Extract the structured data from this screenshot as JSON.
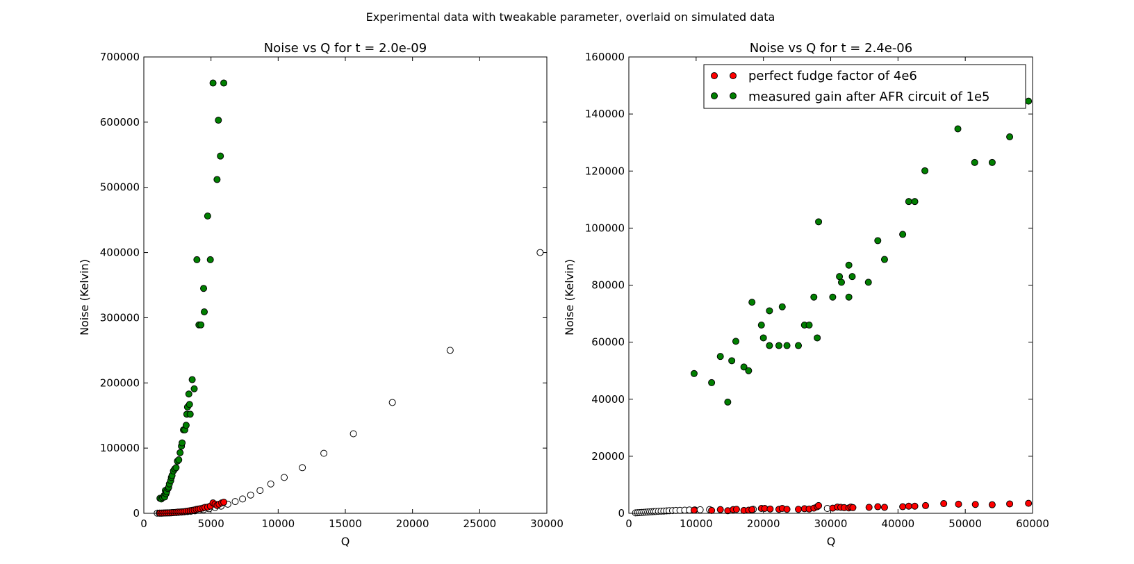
{
  "figure_title": "Experimental data with tweakable parameter, overlaid on simulated data",
  "colors": {
    "red": "#ff0000",
    "green": "#007f00",
    "hollow": "#ffffff",
    "edge": "#000000"
  },
  "chart_data": [
    {
      "type": "scatter",
      "title": "Noise vs Q for t = 2.0e-09",
      "xlabel": "Q",
      "ylabel": "Noise (Kelvin)",
      "xlim": [
        0,
        30000
      ],
      "ylim": [
        0,
        700000
      ],
      "xticks": [
        0,
        5000,
        10000,
        15000,
        20000,
        25000,
        30000
      ],
      "yticks": [
        0,
        100000,
        200000,
        300000,
        400000,
        500000,
        600000,
        700000
      ],
      "legend": null,
      "series": [
        {
          "marker": "hollow",
          "x": [
            1000,
            1150,
            1300,
            1450,
            1600,
            1750,
            1900,
            2050,
            2200,
            2400,
            2600,
            2800,
            3000,
            3250,
            3500,
            3800,
            4100,
            4450,
            4850,
            5300,
            5750,
            6250,
            6800,
            7350,
            7950,
            8650,
            9450,
            10450,
            11800,
            13400,
            15600,
            18500,
            22800,
            29500
          ],
          "y": [
            200,
            250,
            300,
            400,
            500,
            600,
            700,
            800,
            1000,
            1200,
            1500,
            1800,
            2100,
            2600,
            3100,
            3800,
            4600,
            5600,
            7000,
            9000,
            11000,
            14000,
            18000,
            22000,
            28000,
            35000,
            45000,
            55000,
            70000,
            92000,
            122000,
            170000,
            250000,
            400000
          ]
        },
        {
          "marker": "red",
          "x": [
            1200,
            1350,
            1500,
            1650,
            1800,
            1950,
            2100,
            2250,
            2400,
            2550,
            2700,
            2850,
            3000,
            3150,
            3300,
            3450,
            3600,
            3750,
            3900,
            4050,
            4200,
            4400,
            4550,
            4750,
            4950,
            5150,
            5300,
            5450,
            5600,
            5800,
            5950
          ],
          "y": [
            200,
            300,
            400,
            500,
            700,
            800,
            1000,
            1200,
            1500,
            1800,
            2000,
            2300,
            2500,
            3000,
            3500,
            4000,
            4500,
            5000,
            6000,
            6500,
            7000,
            8000,
            9000,
            9500,
            11000,
            16000,
            14000,
            12000,
            14000,
            16000,
            17000
          ]
        },
        {
          "marker": "green",
          "x": [
            1200,
            1300,
            1400,
            1500,
            1550,
            1600,
            1650,
            1700,
            1800,
            1850,
            1900,
            2000,
            2050,
            2100,
            2200,
            2300,
            2400,
            2500,
            2600,
            2700,
            2800,
            2850,
            2950,
            3050,
            3150,
            3200,
            3250,
            3350,
            3400,
            3450,
            3600,
            3750,
            3950,
            4100,
            4250,
            4450,
            4500,
            4750,
            4950,
            5150,
            5450,
            5550,
            5700,
            5950
          ],
          "y": [
            23000,
            22000,
            24000,
            27000,
            25000,
            35000,
            30000,
            33000,
            38000,
            40000,
            45000,
            50000,
            55000,
            58000,
            65000,
            68000,
            70000,
            80000,
            82000,
            93000,
            103000,
            108000,
            128000,
            128000,
            135000,
            152000,
            163000,
            183000,
            167000,
            152000,
            205000,
            191000,
            389000,
            289000,
            289000,
            345000,
            309000,
            456000,
            389000,
            660000,
            512000,
            603000,
            548000,
            660000
          ]
        }
      ]
    },
    {
      "type": "scatter",
      "title": "Noise vs Q for t = 2.4e-06",
      "xlabel": "Q",
      "ylabel": "Noise (Kelvin)",
      "xlim": [
        0,
        60000
      ],
      "ylim": [
        0,
        160000
      ],
      "xticks": [
        0,
        10000,
        20000,
        30000,
        40000,
        50000,
        60000
      ],
      "yticks": [
        0,
        20000,
        40000,
        60000,
        80000,
        100000,
        120000,
        140000,
        160000
      ],
      "legend": {
        "location": "top-right",
        "entries": [
          {
            "label": "perfect fudge factor of 4e6",
            "marker": "red"
          },
          {
            "label": "measured gain after AFR circuit of 1e5",
            "marker": "green"
          }
        ]
      },
      "series": [
        {
          "marker": "hollow",
          "x": [
            1000,
            1300,
            1600,
            1900,
            2200,
            2500,
            2800,
            3100,
            3400,
            3700,
            4000,
            4400,
            4800,
            5200,
            5600,
            6000,
            6500,
            7000,
            7600,
            8300,
            9000,
            9800,
            10600,
            12000,
            18500,
            29500
          ],
          "y": [
            150,
            200,
            250,
            300,
            350,
            400,
            450,
            500,
            550,
            600,
            650,
            700,
            750,
            800,
            850,
            900,
            950,
            1000,
            1050,
            1100,
            1150,
            1200,
            1250,
            1300,
            1400,
            1700
          ]
        },
        {
          "marker": "red",
          "x": [
            9700,
            12300,
            13600,
            14700,
            15500,
            16000,
            17100,
            17800,
            18300,
            19700,
            20200,
            21000,
            22300,
            22800,
            23500,
            25200,
            26100,
            26800,
            27500,
            28000,
            28200,
            30300,
            31000,
            31500,
            32000,
            32700,
            33000,
            33300,
            35700,
            37000,
            38000,
            40700,
            41600,
            42500,
            44100,
            46800,
            49000,
            51500,
            54000,
            56600,
            59400
          ],
          "y": [
            1100,
            1000,
            1300,
            900,
            1300,
            1400,
            1000,
            1100,
            1300,
            1700,
            1700,
            1500,
            1400,
            1700,
            1400,
            1400,
            1600,
            1500,
            1800,
            2300,
            2700,
            1800,
            2200,
            2100,
            2000,
            1900,
            2200,
            2000,
            2100,
            2300,
            2100,
            2300,
            2500,
            2500,
            2700,
            3400,
            3200,
            3100,
            3000,
            3300,
            3500
          ]
        },
        {
          "marker": "green",
          "x": [
            9700,
            12300,
            13600,
            14700,
            15300,
            15900,
            17100,
            17800,
            18300,
            19700,
            20000,
            20900,
            20900,
            22300,
            22800,
            23500,
            25200,
            26100,
            26800,
            27500,
            28200,
            28000,
            30300,
            31300,
            31600,
            32700,
            32700,
            33200,
            35600,
            37000,
            38000,
            40700,
            41600,
            42500,
            44000,
            48900,
            51400,
            54000,
            56600,
            59400
          ],
          "y": [
            49000,
            45800,
            55000,
            39000,
            53500,
            60300,
            51300,
            50000,
            74000,
            66000,
            61500,
            71000,
            58800,
            58800,
            72400,
            58800,
            58800,
            66000,
            66000,
            75800,
            102200,
            61500,
            75800,
            83000,
            81000,
            87000,
            75800,
            83000,
            81000,
            95600,
            89000,
            97800,
            109300,
            109300,
            120100,
            134800,
            123000,
            123000,
            132000,
            144500
          ]
        }
      ]
    }
  ]
}
